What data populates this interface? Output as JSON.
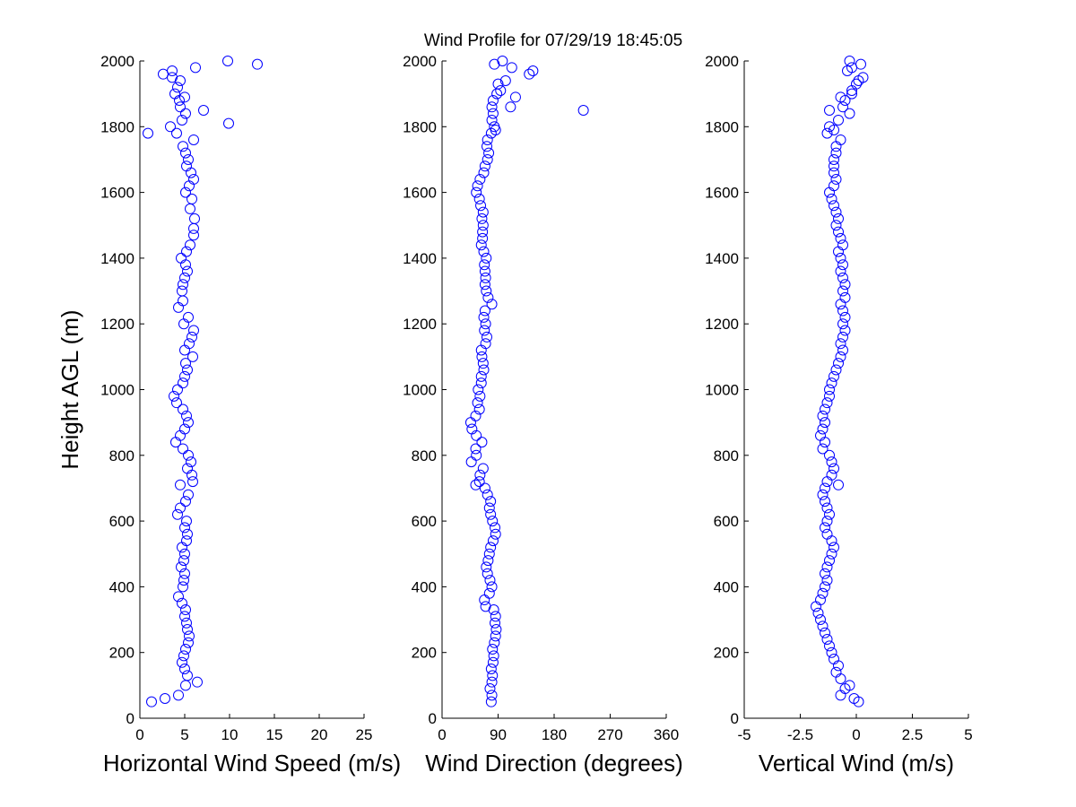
{
  "figure": {
    "title": "Wind Profile for  07/29/19 18:45:05"
  },
  "chart_data": [
    {
      "type": "scatter",
      "xlabel": "Horizontal Wind Speed (m/s)",
      "ylabel": "Height AGL (m)",
      "xlim": [
        0,
        25
      ],
      "ylim": [
        0,
        2000
      ],
      "xticks": [
        "0",
        "5",
        "10",
        "15",
        "20",
        "25"
      ],
      "yticks": [
        "0",
        "200",
        "400",
        "600",
        "800",
        "1000",
        "1200",
        "1400",
        "1600",
        "1800",
        "2000"
      ],
      "grid": false,
      "marker": "open-circle",
      "color": "#0000ff",
      "points": [
        [
          1.3,
          50
        ],
        [
          2.8,
          60
        ],
        [
          4.3,
          70
        ],
        [
          6.4,
          110
        ],
        [
          5.1,
          100
        ],
        [
          5.3,
          130
        ],
        [
          5.0,
          150
        ],
        [
          4.7,
          170
        ],
        [
          4.9,
          190
        ],
        [
          5.1,
          210
        ],
        [
          5.4,
          230
        ],
        [
          5.5,
          250
        ],
        [
          5.3,
          270
        ],
        [
          5.2,
          290
        ],
        [
          5.0,
          310
        ],
        [
          5.1,
          330
        ],
        [
          4.7,
          350
        ],
        [
          4.3,
          370
        ],
        [
          4.8,
          400
        ],
        [
          4.9,
          420
        ],
        [
          5.0,
          440
        ],
        [
          4.6,
          460
        ],
        [
          4.9,
          480
        ],
        [
          5.0,
          500
        ],
        [
          4.7,
          520
        ],
        [
          5.2,
          540
        ],
        [
          5.3,
          560
        ],
        [
          5.0,
          580
        ],
        [
          5.2,
          600
        ],
        [
          4.2,
          620
        ],
        [
          4.5,
          640
        ],
        [
          5.1,
          660
        ],
        [
          5.4,
          680
        ],
        [
          4.5,
          710
        ],
        [
          5.9,
          720
        ],
        [
          5.8,
          740
        ],
        [
          5.3,
          760
        ],
        [
          5.7,
          780
        ],
        [
          5.4,
          800
        ],
        [
          4.8,
          820
        ],
        [
          4.0,
          840
        ],
        [
          4.5,
          860
        ],
        [
          5.0,
          880
        ],
        [
          5.4,
          900
        ],
        [
          5.2,
          920
        ],
        [
          4.8,
          940
        ],
        [
          4.1,
          960
        ],
        [
          3.8,
          980
        ],
        [
          4.2,
          1000
        ],
        [
          4.8,
          1020
        ],
        [
          5.0,
          1040
        ],
        [
          5.3,
          1060
        ],
        [
          5.1,
          1080
        ],
        [
          5.9,
          1100
        ],
        [
          5.0,
          1120
        ],
        [
          5.5,
          1140
        ],
        [
          5.8,
          1160
        ],
        [
          6.0,
          1180
        ],
        [
          4.9,
          1200
        ],
        [
          5.4,
          1220
        ],
        [
          4.3,
          1250
        ],
        [
          4.8,
          1270
        ],
        [
          4.7,
          1300
        ],
        [
          4.8,
          1320
        ],
        [
          5.0,
          1340
        ],
        [
          5.3,
          1360
        ],
        [
          5.1,
          1380
        ],
        [
          4.6,
          1400
        ],
        [
          5.2,
          1420
        ],
        [
          5.6,
          1440
        ],
        [
          6.0,
          1470
        ],
        [
          6.0,
          1490
        ],
        [
          6.1,
          1520
        ],
        [
          5.6,
          1550
        ],
        [
          5.8,
          1580
        ],
        [
          5.1,
          1600
        ],
        [
          5.5,
          1620
        ],
        [
          6.0,
          1640
        ],
        [
          5.7,
          1660
        ],
        [
          5.2,
          1680
        ],
        [
          5.4,
          1700
        ],
        [
          5.1,
          1720
        ],
        [
          4.8,
          1740
        ],
        [
          6.0,
          1760
        ],
        [
          4.1,
          1780
        ],
        [
          3.4,
          1800
        ],
        [
          0.9,
          1780
        ],
        [
          4.7,
          1820
        ],
        [
          5.1,
          1840
        ],
        [
          7.1,
          1850
        ],
        [
          9.9,
          1810
        ],
        [
          4.5,
          1860
        ],
        [
          4.4,
          1880
        ],
        [
          5.0,
          1890
        ],
        [
          3.9,
          1900
        ],
        [
          4.2,
          1920
        ],
        [
          4.5,
          1940
        ],
        [
          3.6,
          1950
        ],
        [
          2.6,
          1960
        ],
        [
          3.6,
          1970
        ],
        [
          6.2,
          1980
        ],
        [
          13.1,
          1990
        ],
        [
          9.8,
          2000
        ]
      ]
    },
    {
      "type": "scatter",
      "xlabel": "Wind Direction (degrees)",
      "ylabel": "",
      "xlim": [
        0,
        360
      ],
      "ylim": [
        0,
        2000
      ],
      "xticks": [
        "0",
        "90",
        "180",
        "270",
        "360"
      ],
      "yticks": [
        "0",
        "200",
        "400",
        "600",
        "800",
        "1000",
        "1200",
        "1400",
        "1600",
        "1800",
        "2000"
      ],
      "grid": false,
      "marker": "open-circle",
      "color": "#0000ff",
      "points": [
        [
          79,
          50
        ],
        [
          80,
          70
        ],
        [
          77,
          90
        ],
        [
          80,
          110
        ],
        [
          81,
          130
        ],
        [
          79,
          150
        ],
        [
          82,
          170
        ],
        [
          83,
          190
        ],
        [
          81,
          210
        ],
        [
          84,
          230
        ],
        [
          86,
          250
        ],
        [
          87,
          270
        ],
        [
          85,
          290
        ],
        [
          86,
          310
        ],
        [
          83,
          330
        ],
        [
          70,
          340
        ],
        [
          68,
          360
        ],
        [
          76,
          380
        ],
        [
          80,
          400
        ],
        [
          77,
          420
        ],
        [
          73,
          440
        ],
        [
          71,
          460
        ],
        [
          74,
          480
        ],
        [
          76,
          500
        ],
        [
          78,
          520
        ],
        [
          82,
          540
        ],
        [
          86,
          560
        ],
        [
          85,
          580
        ],
        [
          81,
          600
        ],
        [
          78,
          620
        ],
        [
          76,
          640
        ],
        [
          78,
          660
        ],
        [
          73,
          680
        ],
        [
          69,
          700
        ],
        [
          54,
          710
        ],
        [
          60,
          720
        ],
        [
          61,
          740
        ],
        [
          66,
          760
        ],
        [
          47,
          780
        ],
        [
          55,
          800
        ],
        [
          54,
          820
        ],
        [
          64,
          840
        ],
        [
          55,
          860
        ],
        [
          48,
          880
        ],
        [
          46,
          900
        ],
        [
          54,
          920
        ],
        [
          60,
          940
        ],
        [
          57,
          960
        ],
        [
          61,
          980
        ],
        [
          58,
          1000
        ],
        [
          63,
          1020
        ],
        [
          63,
          1040
        ],
        [
          67,
          1060
        ],
        [
          66,
          1080
        ],
        [
          64,
          1100
        ],
        [
          63,
          1120
        ],
        [
          70,
          1140
        ],
        [
          72,
          1160
        ],
        [
          68,
          1180
        ],
        [
          70,
          1200
        ],
        [
          67,
          1220
        ],
        [
          69,
          1240
        ],
        [
          80,
          1260
        ],
        [
          74,
          1280
        ],
        [
          71,
          1300
        ],
        [
          69,
          1320
        ],
        [
          70,
          1340
        ],
        [
          69,
          1360
        ],
        [
          68,
          1380
        ],
        [
          71,
          1400
        ],
        [
          67,
          1420
        ],
        [
          63,
          1440
        ],
        [
          65,
          1460
        ],
        [
          65,
          1480
        ],
        [
          66,
          1500
        ],
        [
          64,
          1520
        ],
        [
          66,
          1540
        ],
        [
          62,
          1560
        ],
        [
          60,
          1580
        ],
        [
          55,
          1600
        ],
        [
          57,
          1620
        ],
        [
          61,
          1640
        ],
        [
          67,
          1660
        ],
        [
          69,
          1680
        ],
        [
          73,
          1700
        ],
        [
          75,
          1720
        ],
        [
          72,
          1740
        ],
        [
          73,
          1760
        ],
        [
          79,
          1780
        ],
        [
          86,
          1790
        ],
        [
          84,
          1800
        ],
        [
          80,
          1820
        ],
        [
          82,
          1840
        ],
        [
          227,
          1850
        ],
        [
          80,
          1860
        ],
        [
          110,
          1860
        ],
        [
          82,
          1880
        ],
        [
          88,
          1900
        ],
        [
          94,
          1910
        ],
        [
          118,
          1890
        ],
        [
          90,
          1930
        ],
        [
          102,
          1940
        ],
        [
          140,
          1960
        ],
        [
          146,
          1970
        ],
        [
          112,
          1980
        ],
        [
          84,
          1990
        ],
        [
          97,
          2000
        ]
      ]
    },
    {
      "type": "scatter",
      "xlabel": "Vertical Wind (m/s)",
      "ylabel": "",
      "xlim": [
        -5,
        5
      ],
      "xticks": [
        "-5",
        "-2.5",
        "0",
        "2.5",
        "5"
      ],
      "ylim": [
        0,
        2000
      ],
      "yticks": [
        "0",
        "200",
        "400",
        "600",
        "800",
        "1000",
        "1200",
        "1400",
        "1600",
        "1800",
        "2000"
      ],
      "grid": false,
      "marker": "open-circle",
      "color": "#0000ff",
      "points": [
        [
          0.1,
          50
        ],
        [
          -0.1,
          60
        ],
        [
          -0.7,
          70
        ],
        [
          -0.5,
          90
        ],
        [
          -0.3,
          100
        ],
        [
          -0.7,
          120
        ],
        [
          -0.9,
          140
        ],
        [
          -0.8,
          160
        ],
        [
          -1.0,
          180
        ],
        [
          -1.1,
          200
        ],
        [
          -1.2,
          220
        ],
        [
          -1.3,
          240
        ],
        [
          -1.4,
          260
        ],
        [
          -1.5,
          280
        ],
        [
          -1.6,
          300
        ],
        [
          -1.7,
          320
        ],
        [
          -1.8,
          340
        ],
        [
          -1.6,
          360
        ],
        [
          -1.5,
          380
        ],
        [
          -1.4,
          400
        ],
        [
          -1.3,
          420
        ],
        [
          -1.4,
          440
        ],
        [
          -1.3,
          460
        ],
        [
          -1.2,
          480
        ],
        [
          -1.1,
          500
        ],
        [
          -1.0,
          520
        ],
        [
          -1.1,
          540
        ],
        [
          -1.3,
          560
        ],
        [
          -1.4,
          580
        ],
        [
          -1.3,
          600
        ],
        [
          -1.2,
          620
        ],
        [
          -1.3,
          640
        ],
        [
          -1.4,
          660
        ],
        [
          -1.5,
          680
        ],
        [
          -1.4,
          700
        ],
        [
          -0.8,
          710
        ],
        [
          -1.3,
          720
        ],
        [
          -1.1,
          740
        ],
        [
          -1.0,
          760
        ],
        [
          -1.1,
          780
        ],
        [
          -1.2,
          800
        ],
        [
          -1.5,
          820
        ],
        [
          -1.4,
          840
        ],
        [
          -1.6,
          860
        ],
        [
          -1.5,
          880
        ],
        [
          -1.4,
          900
        ],
        [
          -1.5,
          920
        ],
        [
          -1.4,
          940
        ],
        [
          -1.3,
          960
        ],
        [
          -1.2,
          980
        ],
        [
          -1.2,
          1000
        ],
        [
          -1.1,
          1020
        ],
        [
          -1.0,
          1040
        ],
        [
          -0.9,
          1060
        ],
        [
          -0.8,
          1080
        ],
        [
          -0.7,
          1100
        ],
        [
          -0.6,
          1120
        ],
        [
          -0.7,
          1140
        ],
        [
          -0.6,
          1160
        ],
        [
          -0.5,
          1180
        ],
        [
          -0.6,
          1200
        ],
        [
          -0.5,
          1220
        ],
        [
          -0.6,
          1240
        ],
        [
          -0.7,
          1260
        ],
        [
          -0.5,
          1280
        ],
        [
          -0.6,
          1300
        ],
        [
          -0.5,
          1320
        ],
        [
          -0.6,
          1340
        ],
        [
          -0.7,
          1360
        ],
        [
          -0.6,
          1380
        ],
        [
          -0.7,
          1400
        ],
        [
          -0.8,
          1420
        ],
        [
          -0.6,
          1440
        ],
        [
          -0.7,
          1460
        ],
        [
          -0.8,
          1480
        ],
        [
          -0.9,
          1500
        ],
        [
          -0.8,
          1520
        ],
        [
          -0.9,
          1540
        ],
        [
          -1.0,
          1560
        ],
        [
          -1.1,
          1580
        ],
        [
          -1.2,
          1600
        ],
        [
          -1.0,
          1620
        ],
        [
          -0.9,
          1640
        ],
        [
          -1.0,
          1660
        ],
        [
          -1.0,
          1680
        ],
        [
          -1.0,
          1700
        ],
        [
          -0.9,
          1720
        ],
        [
          -0.9,
          1740
        ],
        [
          -0.7,
          1760
        ],
        [
          -1.3,
          1780
        ],
        [
          -1.0,
          1790
        ],
        [
          -1.2,
          1800
        ],
        [
          -0.8,
          1820
        ],
        [
          -1.2,
          1850
        ],
        [
          -0.3,
          1840
        ],
        [
          -0.6,
          1860
        ],
        [
          -0.5,
          1880
        ],
        [
          -0.7,
          1890
        ],
        [
          -0.2,
          1900
        ],
        [
          -0.2,
          1910
        ],
        [
          0.0,
          1930
        ],
        [
          0.3,
          1950
        ],
        [
          0.1,
          1940
        ],
        [
          -0.4,
          1970
        ],
        [
          -0.2,
          1980
        ],
        [
          0.2,
          1990
        ],
        [
          -0.3,
          2000
        ]
      ]
    }
  ]
}
